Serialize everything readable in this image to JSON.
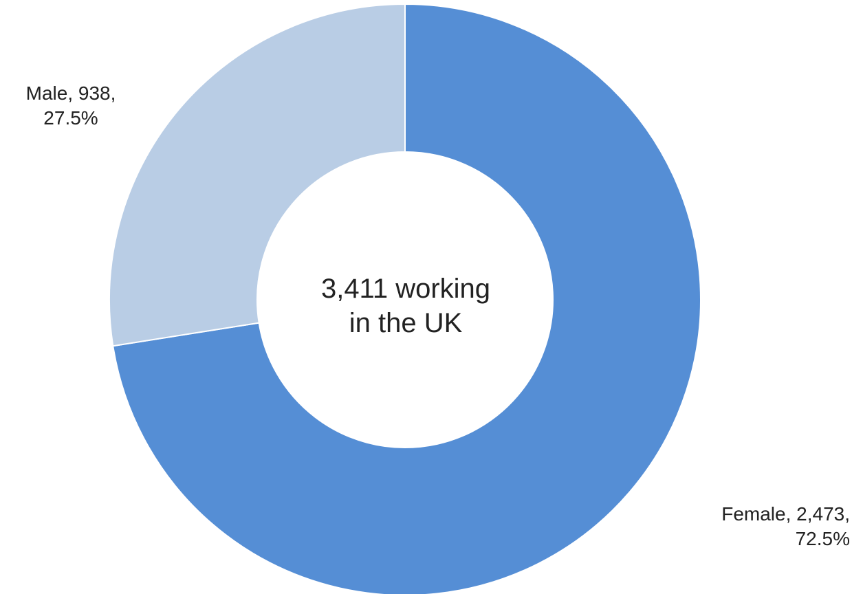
{
  "chart_data": {
    "type": "pie",
    "variant": "donut",
    "center_text": [
      "3,411 working",
      "in the UK"
    ],
    "slices": [
      {
        "label": "Female",
        "value": 2473,
        "percent": 72.5,
        "color": "#558ED5",
        "data_label": [
          "Female, 2,473,",
          "72.5%"
        ]
      },
      {
        "label": "Male",
        "value": 938,
        "percent": 27.5,
        "color": "#B9CDE5",
        "data_label": [
          "Male, 938,",
          "27.5%"
        ]
      }
    ],
    "total": 3411,
    "legend": "none"
  }
}
